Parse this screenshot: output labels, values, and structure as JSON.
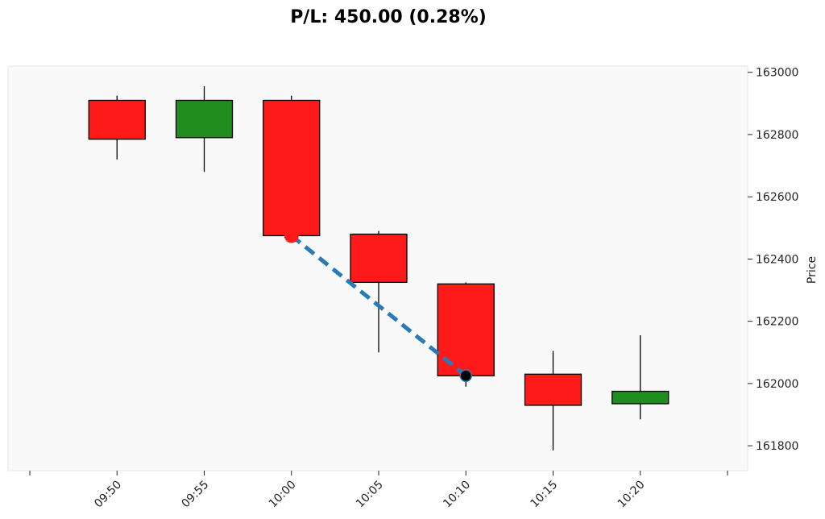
{
  "chart_data": {
    "type": "candlestick",
    "title": "P/L: 450.00 (0.28%)",
    "xlabel": "",
    "ylabel": "Price",
    "y_axis_side": "right",
    "ylim": [
      161720,
      163020
    ],
    "yticks": [
      161800,
      162000,
      162200,
      162400,
      162600,
      162800,
      163000
    ],
    "xlim": [
      -1,
      7
    ],
    "xticks": [
      {
        "pos": -1,
        "label": ""
      },
      {
        "pos": 0,
        "label": "09:50"
      },
      {
        "pos": 1,
        "label": "09:55"
      },
      {
        "pos": 2,
        "label": "10:00"
      },
      {
        "pos": 3,
        "label": "10:05"
      },
      {
        "pos": 4,
        "label": "10:10"
      },
      {
        "pos": 5,
        "label": "10:15"
      },
      {
        "pos": 6,
        "label": "10:20"
      },
      {
        "pos": 7,
        "label": ""
      }
    ],
    "candles": [
      {
        "time": "09:50",
        "open": 162910,
        "high": 162925,
        "low": 162720,
        "close": 162785
      },
      {
        "time": "09:55",
        "open": 162790,
        "high": 162955,
        "low": 162680,
        "close": 162910
      },
      {
        "time": "10:00",
        "open": 162910,
        "high": 162925,
        "low": 162475,
        "close": 162475
      },
      {
        "time": "10:05",
        "open": 162480,
        "high": 162490,
        "low": 162100,
        "close": 162325
      },
      {
        "time": "10:10",
        "open": 162320,
        "high": 162325,
        "low": 161990,
        "close": 162025
      },
      {
        "time": "10:15",
        "open": 162030,
        "high": 162105,
        "low": 161785,
        "close": 161930
      },
      {
        "time": "10:20",
        "open": 161935,
        "high": 162155,
        "low": 161885,
        "close": 161975
      }
    ],
    "trade": {
      "entry": {
        "time": "10:00",
        "pos": 2,
        "price": 162475
      },
      "exit": {
        "time": "10:10",
        "pos": 4,
        "price": 162025
      }
    },
    "colors": {
      "up": "#1e8c1e",
      "down": "#ff1a1a",
      "edge": "#000000",
      "plot_bg": "#f9f9f9",
      "trade_line": "#2a7ab8",
      "entry_marker": "#ff1a1a",
      "exit_marker": "#000000"
    }
  }
}
